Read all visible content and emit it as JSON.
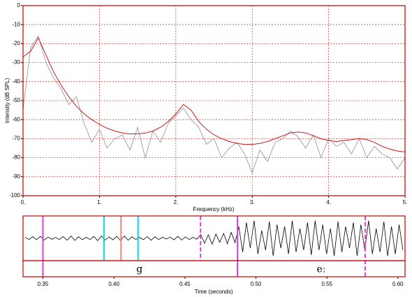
{
  "chart_data": [
    {
      "type": "line",
      "xlabel": "Frequency (kHz)",
      "ylabel": "Intensity (dB SPL)",
      "x": [
        0,
        0.1,
        0.2,
        0.3,
        0.4,
        0.5,
        0.6,
        0.7,
        0.8,
        0.9,
        1.0,
        1.1,
        1.2,
        1.3,
        1.4,
        1.5,
        1.6,
        1.7,
        1.8,
        1.9,
        2.0,
        2.1,
        2.2,
        2.3,
        2.4,
        2.5,
        2.6,
        2.7,
        2.8,
        2.9,
        3.0,
        3.1,
        3.2,
        3.3,
        3.4,
        3.5,
        3.6,
        3.7,
        3.8,
        3.9,
        4.0,
        4.1,
        4.2,
        4.3,
        4.4,
        4.5,
        4.6,
        4.7,
        4.8,
        4.9,
        5.0
      ],
      "series": [
        {
          "color": "#909090",
          "values": [
            -55,
            -22,
            -16,
            -30,
            -38,
            -44,
            -52,
            -48,
            -62,
            -72,
            -65,
            -75,
            -70,
            -68,
            -76,
            -64,
            -80,
            -66,
            -72,
            -62,
            -58,
            -54,
            -60,
            -64,
            -73,
            -70,
            -80,
            -75,
            -72,
            -78,
            -88,
            -76,
            -82,
            -72,
            -70,
            -66,
            -69,
            -75,
            -68,
            -80,
            -70,
            -74,
            -72,
            -78,
            -70,
            -80,
            -74,
            -78,
            -80,
            -86,
            -80
          ]
        },
        {
          "color": "#d01818",
          "values": [
            -27,
            -24,
            -17,
            -26,
            -35,
            -42,
            -48,
            -53,
            -57,
            -60,
            -62.5,
            -64.5,
            -66,
            -67,
            -67.5,
            -67.5,
            -67,
            -66,
            -64,
            -61,
            -57,
            -52,
            -55,
            -61,
            -65,
            -68,
            -70,
            -71.5,
            -72.5,
            -73,
            -73,
            -72.5,
            -71.5,
            -70,
            -68.5,
            -67,
            -66.5,
            -67,
            -68.5,
            -70,
            -71,
            -71.5,
            -71,
            -70.5,
            -70,
            -70.5,
            -72,
            -74,
            -75.5,
            -76.5,
            -77
          ]
        }
      ],
      "xlim": [
        0,
        5
      ],
      "ylim": [
        -100,
        0
      ],
      "xticks": [
        {
          "value": 0,
          "label": "0."
        },
        {
          "value": 1,
          "label": "1."
        },
        {
          "value": 2,
          "label": "2."
        },
        {
          "value": 3,
          "label": "3."
        },
        {
          "value": 4,
          "label": "4."
        },
        {
          "value": 5,
          "label": "5."
        }
      ],
      "yticks": [
        0,
        -10,
        -20,
        -30,
        -40,
        -50,
        -60,
        -70,
        -80,
        -90,
        -100
      ],
      "grid": true,
      "grid_color": "#e04040",
      "frame_color": "#c00000"
    },
    {
      "type": "waveform",
      "xlabel": "Time (seconds)",
      "xlim": [
        0.336,
        0.605
      ],
      "ylim": [
        -1,
        1
      ],
      "xticks": [
        0.35,
        {
          "value": 0.4,
          "label": "0.40"
        },
        0.45,
        {
          "value": 0.5,
          "label": "0.50"
        },
        0.55,
        {
          "value": 0.6,
          "label": "0.60"
        }
      ],
      "values": [
        0.05,
        -0.06,
        0.08,
        -0.07,
        0.1,
        -0.09,
        0.06,
        -0.05,
        0.04,
        -0.06,
        0.09,
        -0.1,
        0.12,
        -0.11,
        0.08,
        -0.07,
        0.05,
        -0.06,
        0.1,
        -0.12,
        0.11,
        -0.09,
        0.07,
        -0.08,
        0.1,
        -0.11,
        0.12,
        -0.1,
        0.08,
        -0.06,
        0.05,
        -0.07,
        0.09,
        -0.1,
        0.08,
        -0.06,
        0.05,
        -0.04,
        0.06,
        -0.08,
        0.1,
        -0.09,
        0.07,
        -0.06,
        0.05,
        -0.05,
        0.2,
        -0.25,
        0.18,
        -0.3,
        0.22,
        -0.2,
        0.25,
        -0.28,
        0.3,
        -0.22,
        0.6,
        -0.7,
        0.8,
        -0.5,
        0.9,
        -0.8,
        0.4,
        -0.6,
        0.85,
        -0.9,
        0.7,
        -0.5,
        0.6,
        -0.8,
        0.9,
        -0.7,
        0.5,
        -0.6,
        0.8,
        -0.85,
        0.9,
        -0.6,
        0.7,
        -0.8,
        0.5,
        -0.9,
        0.85,
        -0.7,
        0.6,
        -0.5,
        0.8,
        -0.9,
        0.7,
        -0.6,
        0.9,
        -0.8,
        0.5,
        -0.7,
        0.85,
        -0.9,
        0.6,
        -0.8,
        0.7,
        -0.6
      ],
      "color": "#000000",
      "frame_color": "#c00000",
      "markers": [
        {
          "time": 0.35,
          "color": "#e040e0",
          "style": "solid",
          "span": "both"
        },
        {
          "time": 0.393,
          "color": "#00dede",
          "style": "solid",
          "span": "wave"
        },
        {
          "time": 0.405,
          "color": "#f08080",
          "style": "solid",
          "span": "wave"
        },
        {
          "time": 0.417,
          "color": "#00dede",
          "style": "solid",
          "span": "wave"
        },
        {
          "time": 0.461,
          "color": "#e040e0",
          "style": "dashed",
          "span": "wave"
        },
        {
          "time": 0.487,
          "color": "#e040e0",
          "style": "solid",
          "span": "both"
        },
        {
          "time": 0.577,
          "color": "#e040e0",
          "style": "dashed",
          "span": "both"
        }
      ],
      "segments": [
        {
          "label": "g",
          "time": 0.418
        },
        {
          "label": "eː",
          "time": 0.546
        }
      ]
    }
  ]
}
